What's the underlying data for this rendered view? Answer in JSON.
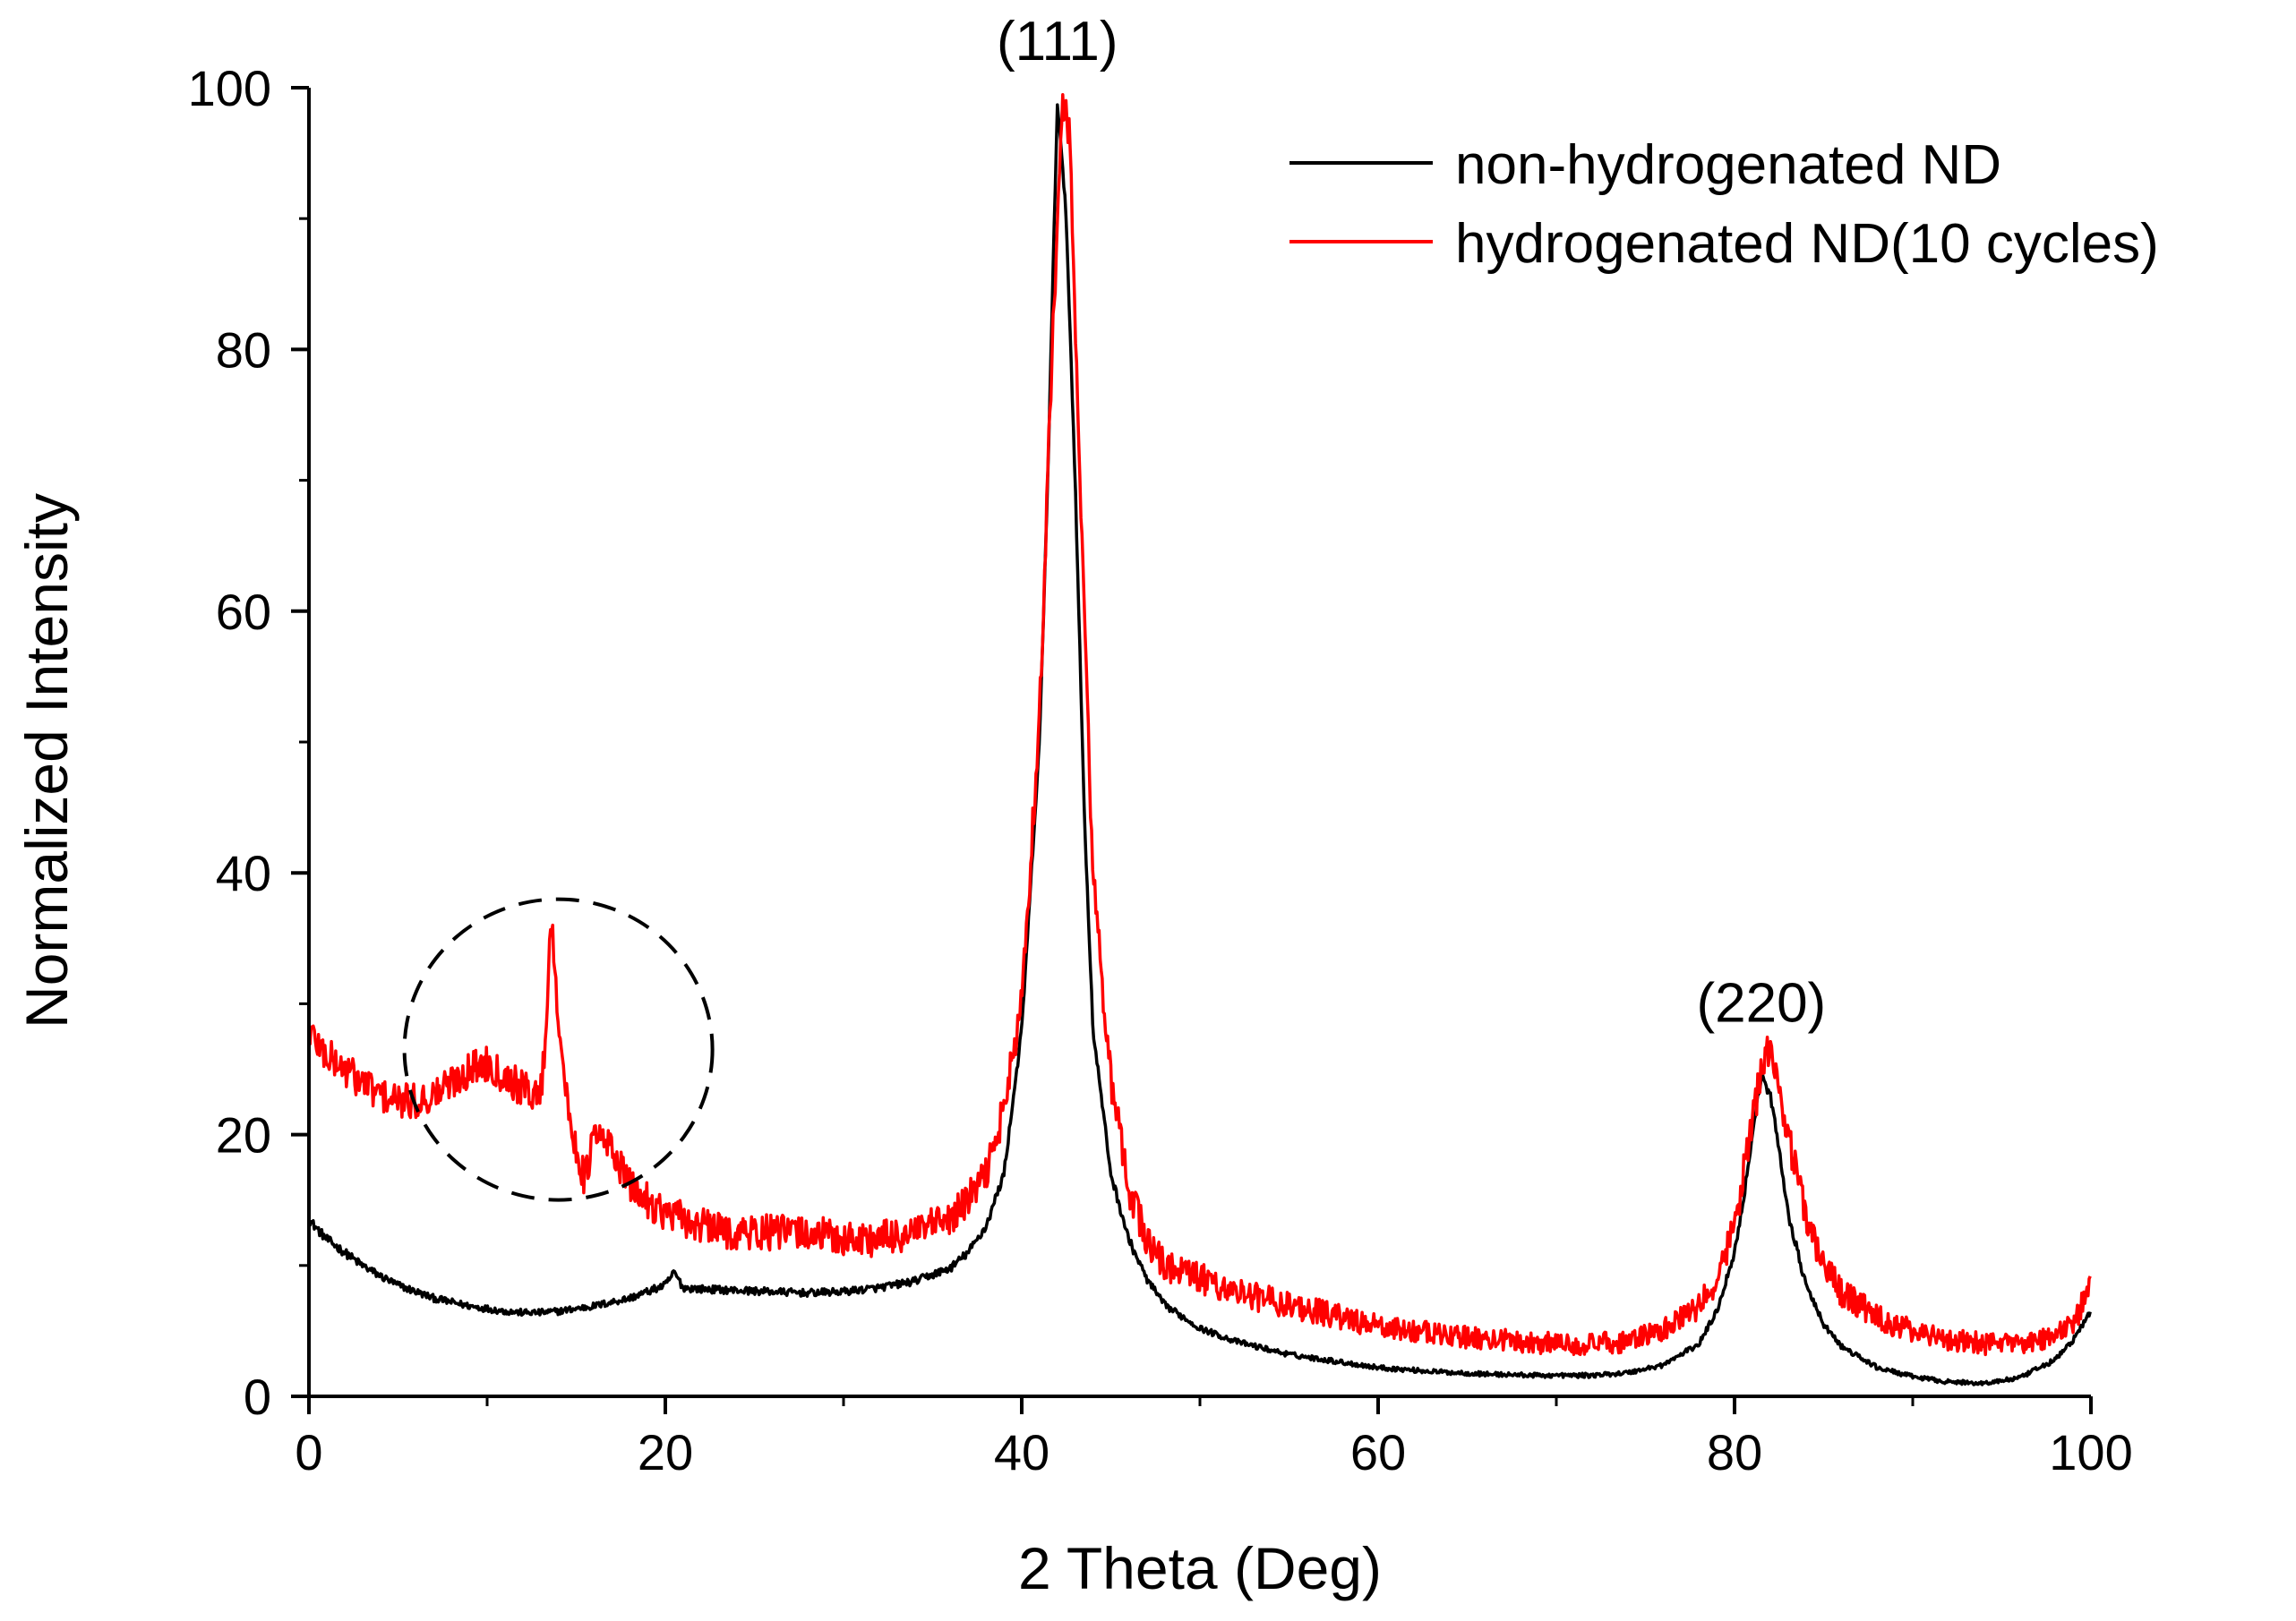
{
  "chart_data": {
    "type": "line",
    "title": "",
    "xlabel": "2 Theta (Deg)",
    "ylabel": "Normalized Intensity",
    "xlim": [
      0,
      100
    ],
    "ylim": [
      0,
      100
    ],
    "xticks": [
      0,
      20,
      40,
      60,
      80,
      100
    ],
    "yticks": [
      0,
      20,
      40,
      60,
      80,
      100
    ],
    "grid": false,
    "legend_position": "top-right",
    "series": [
      {
        "name": "non-hydrogenated ND",
        "color": "#000000",
        "points": [
          [
            0,
            13.5
          ],
          [
            1,
            12
          ],
          [
            2,
            11
          ],
          [
            3,
            10
          ],
          [
            4,
            9.2
          ],
          [
            5,
            8.5
          ],
          [
            6,
            8
          ],
          [
            7,
            7.5
          ],
          [
            8,
            7.2
          ],
          [
            9,
            6.9
          ],
          [
            10,
            6.7
          ],
          [
            11,
            6.5
          ],
          [
            12,
            6.4
          ],
          [
            13,
            6.4
          ],
          [
            14,
            6.5
          ],
          [
            15,
            6.7
          ],
          [
            16,
            6.9
          ],
          [
            17,
            7.2
          ],
          [
            18,
            7.5
          ],
          [
            19,
            8
          ],
          [
            20,
            8.5
          ],
          [
            20.5,
            9.5
          ],
          [
            21,
            8.3
          ],
          [
            22,
            8.2
          ],
          [
            24,
            8.1
          ],
          [
            26,
            8
          ],
          [
            28,
            7.9
          ],
          [
            30,
            8
          ],
          [
            32,
            8.3
          ],
          [
            34,
            8.8
          ],
          [
            36,
            9.8
          ],
          [
            37,
            11
          ],
          [
            38,
            13
          ],
          [
            39,
            17
          ],
          [
            40,
            28
          ],
          [
            41,
            50
          ],
          [
            41.5,
            72
          ],
          [
            42,
            99
          ],
          [
            42.5,
            90
          ],
          [
            43,
            70
          ],
          [
            43.5,
            45
          ],
          [
            44,
            28
          ],
          [
            45,
            17
          ],
          [
            46,
            12
          ],
          [
            47,
            9
          ],
          [
            48,
            7
          ],
          [
            50,
            5.2
          ],
          [
            52,
            4.2
          ],
          [
            55,
            3.2
          ],
          [
            58,
            2.6
          ],
          [
            60,
            2.2
          ],
          [
            63,
            1.9
          ],
          [
            66,
            1.7
          ],
          [
            69,
            1.6
          ],
          [
            72,
            1.6
          ],
          [
            74,
            1.8
          ],
          [
            76,
            2.4
          ],
          [
            78,
            4
          ],
          [
            79,
            6.5
          ],
          [
            80,
            11
          ],
          [
            80.5,
            15
          ],
          [
            81,
            20
          ],
          [
            81.5,
            24.5
          ],
          [
            82,
            23
          ],
          [
            82.5,
            19
          ],
          [
            83,
            14
          ],
          [
            84,
            8.5
          ],
          [
            85,
            5.5
          ],
          [
            86,
            3.8
          ],
          [
            88,
            2.2
          ],
          [
            90,
            1.5
          ],
          [
            92,
            1.1
          ],
          [
            94,
            1
          ],
          [
            96,
            1.4
          ],
          [
            98,
            2.8
          ],
          [
            99,
            4.3
          ],
          [
            100,
            6.5
          ]
        ]
      },
      {
        "name": "hydrogenated ND(10 cycles)",
        "color": "#ff0000",
        "points": [
          [
            0,
            28
          ],
          [
            1,
            26
          ],
          [
            2,
            25
          ],
          [
            3,
            24
          ],
          [
            4,
            23
          ],
          [
            5,
            22.5
          ],
          [
            6,
            22.5
          ],
          [
            7,
            23
          ],
          [
            8,
            24
          ],
          [
            9,
            25
          ],
          [
            10,
            25.5
          ],
          [
            11,
            24.5
          ],
          [
            12,
            23.5
          ],
          [
            13,
            23
          ],
          [
            13.3,
            28
          ],
          [
            13.6,
            37
          ],
          [
            14,
            29
          ],
          [
            14.5,
            22
          ],
          [
            15,
            19
          ],
          [
            15.5,
            16.5
          ],
          [
            16,
            20
          ],
          [
            17,
            19
          ],
          [
            18,
            16
          ],
          [
            19,
            15
          ],
          [
            20,
            14
          ],
          [
            22,
            13
          ],
          [
            24,
            12.5
          ],
          [
            26,
            12.5
          ],
          [
            28,
            12.5
          ],
          [
            30,
            12
          ],
          [
            32,
            12
          ],
          [
            34,
            12.5
          ],
          [
            36,
            13.5
          ],
          [
            37,
            15
          ],
          [
            38,
            17
          ],
          [
            39,
            22
          ],
          [
            40,
            30
          ],
          [
            41,
            52
          ],
          [
            41.5,
            72
          ],
          [
            42,
            90
          ],
          [
            42.3,
            99
          ],
          [
            42.7,
            96
          ],
          [
            43,
            82
          ],
          [
            43.5,
            60
          ],
          [
            44,
            40
          ],
          [
            45,
            24
          ],
          [
            46,
            16
          ],
          [
            47,
            12
          ],
          [
            48,
            10
          ],
          [
            50,
            9
          ],
          [
            52,
            8
          ],
          [
            55,
            7
          ],
          [
            58,
            6
          ],
          [
            60,
            5.3
          ],
          [
            63,
            4.8
          ],
          [
            66,
            4.4
          ],
          [
            69,
            4.1
          ],
          [
            72,
            4
          ],
          [
            74,
            4.2
          ],
          [
            76,
            5
          ],
          [
            78,
            6.8
          ],
          [
            79,
            9
          ],
          [
            80,
            13
          ],
          [
            80.5,
            17
          ],
          [
            81,
            21
          ],
          [
            81.5,
            25
          ],
          [
            81.8,
            27
          ],
          [
            82.2,
            25.5
          ],
          [
            83,
            20
          ],
          [
            84,
            14
          ],
          [
            85,
            10
          ],
          [
            86,
            8
          ],
          [
            88,
            6
          ],
          [
            90,
            5
          ],
          [
            92,
            4.4
          ],
          [
            94,
            4
          ],
          [
            96,
            4
          ],
          [
            98,
            4.5
          ],
          [
            99,
            5.5
          ],
          [
            100,
            8.5
          ]
        ]
      }
    ],
    "annotations": [
      {
        "text": "(111)",
        "x": 42,
        "y": 103.5
      },
      {
        "text": "(220)",
        "x": 81.5,
        "y": 30
      },
      {
        "type": "dashed-circle",
        "center": [
          14,
          26.5
        ],
        "note": "highlighted feature"
      }
    ]
  }
}
